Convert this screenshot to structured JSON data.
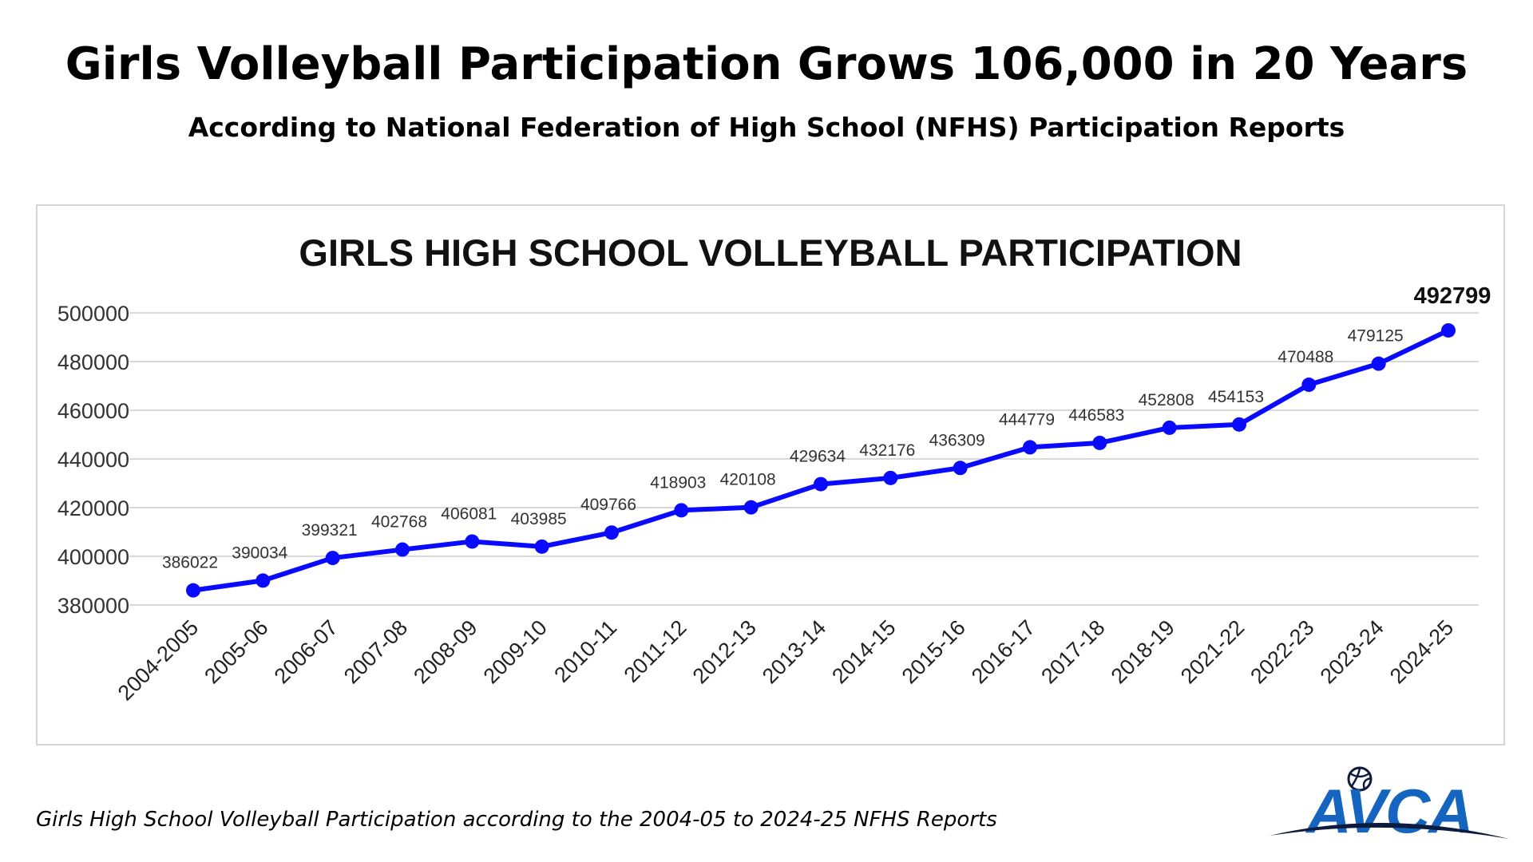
{
  "headline": "Girls Volleyball Participation Grows 106,000 in 20 Years",
  "subheadline": "According to National Federation of High School (NFHS) Participation Reports",
  "caption": "Girls High School Volleyball Participation according to the 2004-05 to 2024-25 NFHS Reports",
  "logo": {
    "text": "AVCA",
    "icon": "volleyball-icon",
    "color": "#1565c0"
  },
  "chart_data": {
    "type": "line",
    "title": "GIRLS HIGH SCHOOL VOLLEYBALL PARTICIPATION",
    "xlabel": "",
    "ylabel": "",
    "ylim": [
      380000,
      500000
    ],
    "yticks": [
      380000,
      400000,
      420000,
      440000,
      460000,
      480000,
      500000
    ],
    "grid": true,
    "legend": "none",
    "line_color": "#0a0aff",
    "categories": [
      "2004-2005",
      "2005-06",
      "2006-07",
      "2007-08",
      "2008-09",
      "2009-10",
      "2010-11",
      "2011-12",
      "2012-13",
      "2013-14",
      "2014-15",
      "2015-16",
      "2016-17",
      "2017-18",
      "2018-19",
      "2021-22",
      "2022-23",
      "2023-24",
      "2024-25"
    ],
    "series": [
      {
        "values": [
          386022,
          390034,
          399321,
          402768,
          406081,
          403985,
          409766,
          418903,
          420108,
          429634,
          432176,
          436309,
          444779,
          446583,
          452808,
          454153,
          470488,
          479125,
          492799
        ]
      }
    ],
    "highlighted_label": "492799"
  }
}
